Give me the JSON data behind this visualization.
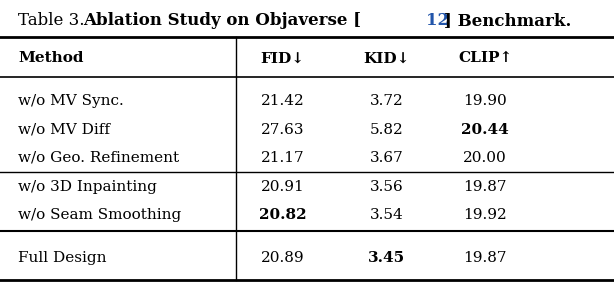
{
  "title_plain": "Table 3.  ",
  "title_bold": "Ablation Study on Objaverse [",
  "title_ref": "12",
  "title_end": "] Benchmark.",
  "col_headers": [
    "Method",
    "FID↓",
    "KID↓",
    "CLIP↑"
  ],
  "rows": [
    [
      "w/o MV Sync.",
      "21.42",
      "3.72",
      "19.90",
      false,
      false,
      false,
      false
    ],
    [
      "w/o MV Diff",
      "27.63",
      "5.82",
      "20.44",
      false,
      false,
      false,
      true
    ],
    [
      "w/o Geo. Refinement",
      "21.17",
      "3.67",
      "20.00",
      false,
      false,
      false,
      false
    ],
    [
      "w/o 3D Inpainting",
      "20.91",
      "3.56",
      "19.87",
      false,
      false,
      false,
      false
    ],
    [
      "w/o Seam Smoothing",
      "20.82",
      "3.54",
      "19.92",
      true,
      false,
      false,
      false
    ],
    [
      "Full Design",
      "20.89",
      "3.45",
      "19.87",
      false,
      false,
      true,
      false
    ]
  ],
  "group_separators": [
    3,
    5
  ],
  "bold_cells": {
    "1_3": true,
    "4_1": true,
    "5_2": true
  },
  "bg_color": "#ffffff",
  "text_color": "#000000",
  "ref_color": "#2255aa",
  "font_size": 11,
  "header_font_size": 11
}
